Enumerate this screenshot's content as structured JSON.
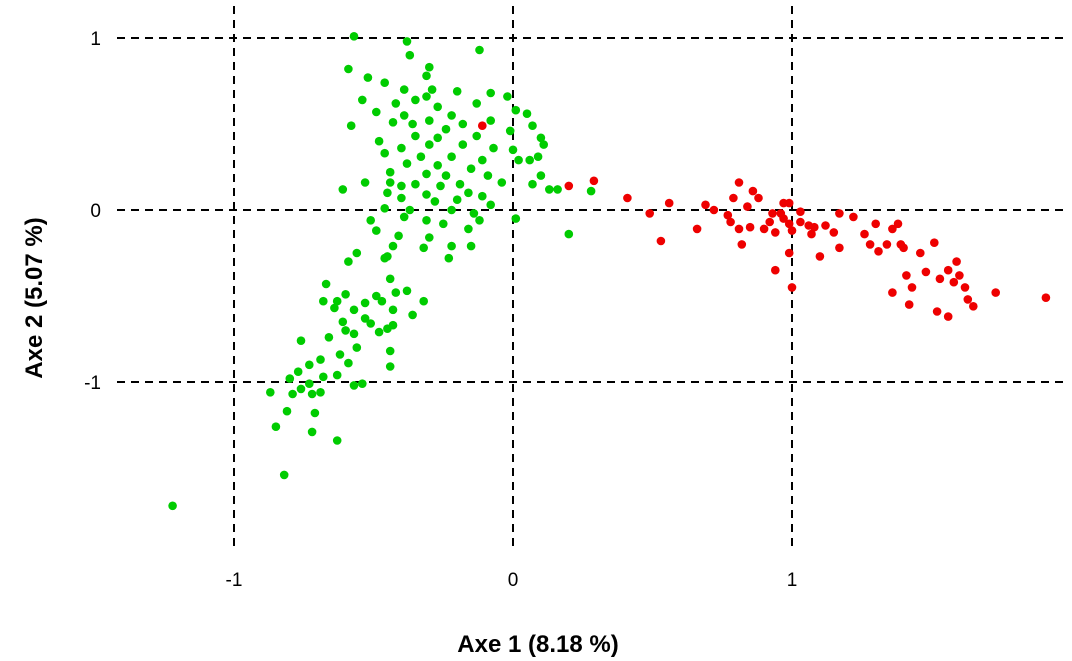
{
  "chart_data": {
    "type": "scatter",
    "title": "",
    "xlabel": "Axe 1 (8.18 %)",
    "ylabel": "Axe 2 (5.07 %)",
    "xlim": [
      -1.25,
      1.9
    ],
    "ylim": [
      -1.75,
      1.05
    ],
    "x_ticks": [
      {
        "value": -1,
        "label": "-1"
      },
      {
        "value": 0,
        "label": "0"
      },
      {
        "value": 1,
        "label": "1"
      }
    ],
    "y_ticks": [
      {
        "value": 1,
        "label": "1"
      },
      {
        "value": 0,
        "label": "0"
      },
      {
        "value": -1,
        "label": "-1"
      }
    ],
    "grid": true,
    "grid_style": "dashed",
    "series": [
      {
        "color": "#00cc00",
        "points": [
          [
            -0.57,
            1.01
          ],
          [
            -0.38,
            0.98
          ],
          [
            -0.12,
            0.93
          ],
          [
            -0.59,
            0.82
          ],
          [
            -0.37,
            0.9
          ],
          [
            -0.3,
            0.83
          ],
          [
            -0.52,
            0.77
          ],
          [
            -0.46,
            0.74
          ],
          [
            -0.31,
            0.78
          ],
          [
            -0.39,
            0.7
          ],
          [
            -0.2,
            0.69
          ],
          [
            -0.29,
            0.7
          ],
          [
            -0.08,
            0.68
          ],
          [
            -0.13,
            0.62
          ],
          [
            -0.42,
            0.62
          ],
          [
            -0.54,
            0.64
          ],
          [
            -0.35,
            0.64
          ],
          [
            -0.31,
            0.66
          ],
          [
            -0.27,
            0.6
          ],
          [
            -0.02,
            0.66
          ],
          [
            -0.49,
            0.57
          ],
          [
            -0.39,
            0.55
          ],
          [
            -0.22,
            0.55
          ],
          [
            -0.36,
            0.5
          ],
          [
            -0.3,
            0.52
          ],
          [
            -0.18,
            0.5
          ],
          [
            -0.08,
            0.52
          ],
          [
            0.01,
            0.58
          ],
          [
            0.05,
            0.56
          ],
          [
            -0.01,
            0.46
          ],
          [
            0.07,
            0.49
          ],
          [
            -0.58,
            0.49
          ],
          [
            -0.43,
            0.51
          ],
          [
            -0.24,
            0.47
          ],
          [
            -0.35,
            0.43
          ],
          [
            -0.13,
            0.43
          ],
          [
            -0.27,
            0.42
          ],
          [
            -0.48,
            0.4
          ],
          [
            -0.4,
            0.36
          ],
          [
            -0.3,
            0.38
          ],
          [
            -0.18,
            0.38
          ],
          [
            -0.07,
            0.36
          ],
          [
            0.1,
            0.42
          ],
          [
            0.11,
            0.38
          ],
          [
            -0.46,
            0.33
          ],
          [
            -0.33,
            0.31
          ],
          [
            -0.22,
            0.31
          ],
          [
            -0.11,
            0.29
          ],
          [
            0.0,
            0.35
          ],
          [
            0.09,
            0.31
          ],
          [
            -0.38,
            0.27
          ],
          [
            -0.27,
            0.26
          ],
          [
            -0.15,
            0.24
          ],
          [
            0.02,
            0.29
          ],
          [
            0.06,
            0.29
          ],
          [
            -0.44,
            0.22
          ],
          [
            -0.31,
            0.21
          ],
          [
            -0.24,
            0.2
          ],
          [
            -0.09,
            0.2
          ],
          [
            0.1,
            0.2
          ],
          [
            -0.53,
            0.16
          ],
          [
            -0.44,
            0.16
          ],
          [
            -0.4,
            0.14
          ],
          [
            -0.35,
            0.15
          ],
          [
            -0.26,
            0.14
          ],
          [
            -0.19,
            0.15
          ],
          [
            -0.04,
            0.16
          ],
          [
            0.07,
            0.15
          ],
          [
            0.13,
            0.12
          ],
          [
            0.16,
            0.12
          ],
          [
            0.28,
            0.11
          ],
          [
            -0.61,
            0.12
          ],
          [
            -0.45,
            0.1
          ],
          [
            -0.31,
            0.09
          ],
          [
            -0.16,
            0.1
          ],
          [
            -0.11,
            0.08
          ],
          [
            -0.4,
            0.07
          ],
          [
            -0.28,
            0.05
          ],
          [
            -0.2,
            0.06
          ],
          [
            -0.08,
            0.03
          ],
          [
            -0.46,
            0.01
          ],
          [
            -0.37,
            0.0
          ],
          [
            -0.22,
            0.0
          ],
          [
            -0.14,
            -0.02
          ],
          [
            0.01,
            -0.05
          ],
          [
            -0.51,
            -0.06
          ],
          [
            -0.39,
            -0.04
          ],
          [
            -0.31,
            -0.06
          ],
          [
            -0.12,
            -0.06
          ],
          [
            -0.25,
            -0.08
          ],
          [
            -0.16,
            -0.11
          ],
          [
            -0.49,
            -0.12
          ],
          [
            -0.41,
            -0.15
          ],
          [
            -0.3,
            -0.16
          ],
          [
            0.2,
            -0.14
          ],
          [
            -0.43,
            -0.21
          ],
          [
            -0.32,
            -0.22
          ],
          [
            -0.22,
            -0.21
          ],
          [
            -0.15,
            -0.21
          ],
          [
            -0.56,
            -0.25
          ],
          [
            -0.46,
            -0.28
          ],
          [
            -0.23,
            -0.28
          ],
          [
            -0.59,
            -0.3
          ],
          [
            -0.45,
            -0.27
          ],
          [
            -0.67,
            -0.43
          ],
          [
            -0.44,
            -0.4
          ],
          [
            -0.6,
            -0.49
          ],
          [
            -0.49,
            -0.5
          ],
          [
            -0.42,
            -0.48
          ],
          [
            -0.38,
            -0.47
          ],
          [
            -0.68,
            -0.53
          ],
          [
            -0.63,
            -0.53
          ],
          [
            -0.53,
            -0.54
          ],
          [
            -0.47,
            -0.53
          ],
          [
            -0.32,
            -0.53
          ],
          [
            -0.64,
            -0.57
          ],
          [
            -0.57,
            -0.58
          ],
          [
            -0.43,
            -0.58
          ],
          [
            -0.53,
            -0.63
          ],
          [
            -0.36,
            -0.61
          ],
          [
            -0.61,
            -0.65
          ],
          [
            -0.51,
            -0.66
          ],
          [
            -0.45,
            -0.69
          ],
          [
            -0.43,
            -0.67
          ],
          [
            -0.6,
            -0.7
          ],
          [
            -0.57,
            -0.72
          ],
          [
            -0.48,
            -0.71
          ],
          [
            -0.66,
            -0.74
          ],
          [
            -0.76,
            -0.76
          ],
          [
            -0.56,
            -0.8
          ],
          [
            -0.44,
            -0.82
          ],
          [
            -0.62,
            -0.84
          ],
          [
            -0.69,
            -0.87
          ],
          [
            -0.59,
            -0.89
          ],
          [
            -0.44,
            -0.91
          ],
          [
            -0.73,
            -0.9
          ],
          [
            -0.77,
            -0.94
          ],
          [
            -0.68,
            -0.97
          ],
          [
            -0.8,
            -0.98
          ],
          [
            -0.63,
            -0.96
          ],
          [
            -0.54,
            -1.01
          ],
          [
            -0.57,
            -1.02
          ],
          [
            -0.73,
            -1.01
          ],
          [
            -0.76,
            -1.04
          ],
          [
            -0.69,
            -1.06
          ],
          [
            -0.87,
            -1.06
          ],
          [
            -0.79,
            -1.07
          ],
          [
            -0.72,
            -1.07
          ],
          [
            -0.81,
            -1.17
          ],
          [
            -0.71,
            -1.18
          ],
          [
            -0.85,
            -1.26
          ],
          [
            -0.72,
            -1.29
          ],
          [
            -0.63,
            -1.34
          ],
          [
            -0.82,
            -1.54
          ],
          [
            -1.22,
            -1.72
          ]
        ]
      },
      {
        "color": "#ee0000",
        "points": [
          [
            -0.11,
            0.49
          ],
          [
            0.2,
            0.14
          ],
          [
            0.29,
            0.17
          ],
          [
            0.41,
            0.07
          ],
          [
            0.49,
            -0.02
          ],
          [
            0.56,
            0.04
          ],
          [
            0.53,
            -0.18
          ],
          [
            0.66,
            -0.11
          ],
          [
            0.69,
            0.03
          ],
          [
            0.72,
            0.0
          ],
          [
            0.77,
            -0.03
          ],
          [
            0.79,
            0.07
          ],
          [
            0.81,
            0.16
          ],
          [
            0.84,
            0.02
          ],
          [
            0.86,
            0.11
          ],
          [
            0.88,
            0.07
          ],
          [
            0.78,
            -0.07
          ],
          [
            0.81,
            -0.11
          ],
          [
            0.85,
            -0.1
          ],
          [
            0.82,
            -0.2
          ],
          [
            0.9,
            -0.11
          ],
          [
            0.93,
            -0.02
          ],
          [
            0.94,
            -0.13
          ],
          [
            0.96,
            -0.02
          ],
          [
            0.97,
            -0.05
          ],
          [
            0.99,
            0.04
          ],
          [
            0.99,
            -0.08
          ],
          [
            1.0,
            -0.12
          ],
          [
            1.03,
            -0.07
          ],
          [
            1.03,
            -0.01
          ],
          [
            1.06,
            -0.09
          ],
          [
            1.07,
            -0.14
          ],
          [
            1.08,
            -0.1
          ],
          [
            1.1,
            -0.27
          ],
          [
            1.12,
            -0.09
          ],
          [
            1.15,
            -0.13
          ],
          [
            1.17,
            -0.02
          ],
          [
            1.17,
            -0.22
          ],
          [
            1.22,
            -0.04
          ],
          [
            1.26,
            -0.14
          ],
          [
            1.28,
            -0.2
          ],
          [
            1.3,
            -0.08
          ],
          [
            1.31,
            -0.24
          ],
          [
            1.34,
            -0.2
          ],
          [
            1.36,
            -0.11
          ],
          [
            1.36,
            -0.48
          ],
          [
            1.38,
            -0.08
          ],
          [
            1.39,
            -0.2
          ],
          [
            1.4,
            -0.22
          ],
          [
            1.41,
            -0.38
          ],
          [
            1.42,
            -0.55
          ],
          [
            1.43,
            -0.45
          ],
          [
            1.46,
            -0.25
          ],
          [
            1.48,
            -0.36
          ],
          [
            1.51,
            -0.19
          ],
          [
            1.52,
            -0.59
          ],
          [
            1.53,
            -0.4
          ],
          [
            1.56,
            -0.35
          ],
          [
            1.56,
            -0.62
          ],
          [
            1.58,
            -0.42
          ],
          [
            1.59,
            -0.3
          ],
          [
            1.6,
            -0.38
          ],
          [
            1.62,
            -0.45
          ],
          [
            1.63,
            -0.52
          ],
          [
            1.65,
            -0.56
          ],
          [
            1.73,
            -0.48
          ],
          [
            1.91,
            -0.51
          ],
          [
            0.94,
            -0.35
          ],
          [
            0.99,
            -0.25
          ],
          [
            1.0,
            -0.45
          ],
          [
            0.97,
            0.04
          ],
          [
            0.92,
            -0.07
          ]
        ]
      }
    ]
  }
}
